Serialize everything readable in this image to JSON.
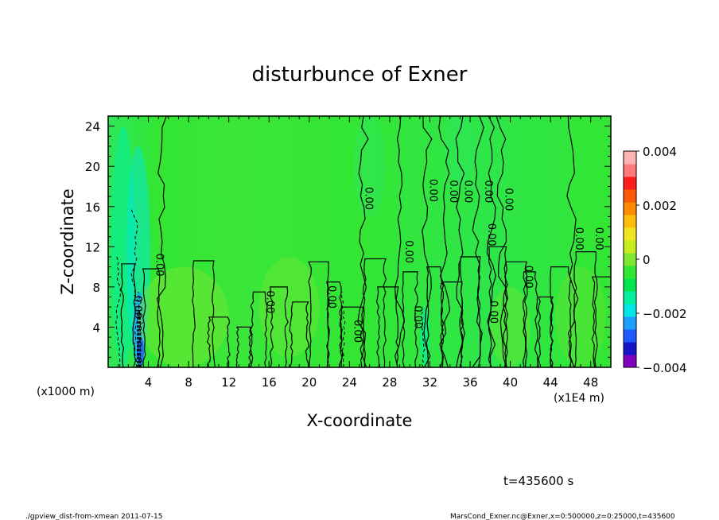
{
  "chart_data": {
    "type": "heatmap",
    "title": "disturbunce of Exner",
    "xlabel": "X-coordinate",
    "ylabel": "Z-coordinate",
    "x_unit_label": "(x1E4 m)",
    "y_unit_label": "(x1000 m)",
    "xlim": [
      0,
      50
    ],
    "ylim": [
      0,
      25
    ],
    "x_ticks": [
      "4",
      "8",
      "12",
      "16",
      "20",
      "24",
      "28",
      "32",
      "36",
      "40",
      "44",
      "48"
    ],
    "y_ticks": [
      "4",
      "8",
      "12",
      "16",
      "20",
      "24"
    ],
    "colorbar": {
      "min": -0.004,
      "max": 0.004,
      "tick_labels": [
        "0.004",
        "0.002",
        "0",
        "−0.002",
        "−0.004"
      ],
      "tick_values": [
        0.004,
        0.002,
        0,
        -0.002,
        -0.004
      ],
      "colors": [
        "#7f00bf",
        "#1414c8",
        "#1e5aff",
        "#1fa0ff",
        "#00e6e6",
        "#00f0a0",
        "#00e650",
        "#33e633",
        "#7fe633",
        "#c8ee1e",
        "#f0e61e",
        "#ffbe0a",
        "#ff8c00",
        "#ff5a0a",
        "#ff1e1e",
        "#ff7a7a",
        "#ffb4b4"
      ]
    },
    "contour_labels": [
      {
        "text": "0.00",
        "x": 4.8,
        "z": 10.2
      },
      {
        "text": "0.00",
        "x": 2.6,
        "z": 6.0
      },
      {
        "text": "0.00",
        "x": 15.8,
        "z": 6.5
      },
      {
        "text": "0.00",
        "x": 21.9,
        "z": 7.0
      },
      {
        "text": "0.00",
        "x": 24.5,
        "z": 3.6
      },
      {
        "text": "0.00",
        "x": 25.6,
        "z": 16.8
      },
      {
        "text": "0.00",
        "x": 29.6,
        "z": 11.5
      },
      {
        "text": "0.00",
        "x": 30.5,
        "z": 5.0
      },
      {
        "text": "0.00",
        "x": 32.0,
        "z": 17.6
      },
      {
        "text": "0.00",
        "x": 34.0,
        "z": 17.5
      },
      {
        "text": "0.00",
        "x": 35.5,
        "z": 17.5
      },
      {
        "text": "0.00",
        "x": 37.5,
        "z": 17.5
      },
      {
        "text": "0.00",
        "x": 37.8,
        "z": 13.2
      },
      {
        "text": "0.00",
        "x": 38.0,
        "z": 5.5
      },
      {
        "text": "0.00",
        "x": 39.5,
        "z": 16.7
      },
      {
        "text": "0.00",
        "x": 41.5,
        "z": 9.0
      },
      {
        "text": "0.00",
        "x": 46.5,
        "z": 12.8
      },
      {
        "text": "0.00",
        "x": 48.5,
        "z": 12.8
      }
    ]
  },
  "annotations": {
    "time": "t=435600 s",
    "footer_left": "./gpview_dist-from-xmean  2011-07-15",
    "footer_right": "MarsCond_Exner.nc@Exner,x=0:500000,z=0:25000,t=435600"
  }
}
